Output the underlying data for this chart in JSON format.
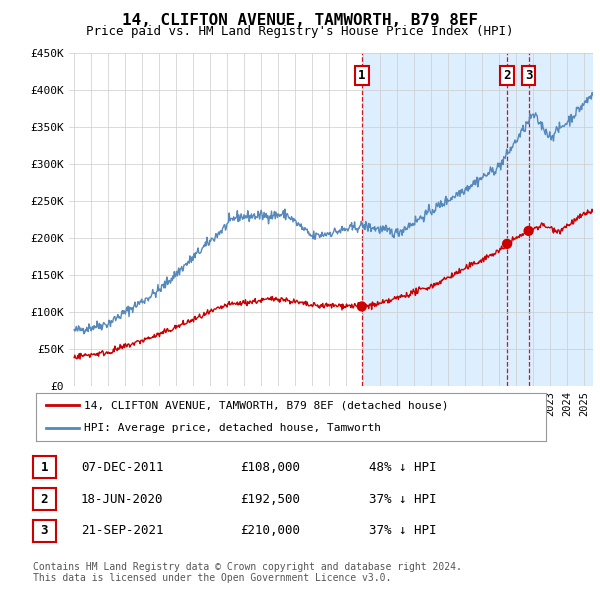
{
  "title": "14, CLIFTON AVENUE, TAMWORTH, B79 8EF",
  "subtitle": "Price paid vs. HM Land Registry's House Price Index (HPI)",
  "sale_prices": [
    108000,
    192500,
    210000
  ],
  "sale_labels": [
    "1",
    "2",
    "3"
  ],
  "hpi_color": "#5588bb",
  "price_color": "#cc0000",
  "vline_color": "#cc0000",
  "annotation_box_color": "#cc0000",
  "shade_color": "#ddeeff",
  "legend_entries": [
    "14, CLIFTON AVENUE, TAMWORTH, B79 8EF (detached house)",
    "HPI: Average price, detached house, Tamworth"
  ],
  "table_rows": [
    [
      "1",
      "07-DEC-2011",
      "£108,000",
      "48% ↓ HPI"
    ],
    [
      "2",
      "18-JUN-2020",
      "£192,500",
      "37% ↓ HPI"
    ],
    [
      "3",
      "21-SEP-2021",
      "£210,000",
      "37% ↓ HPI"
    ]
  ],
  "footnote": "Contains HM Land Registry data © Crown copyright and database right 2024.\nThis data is licensed under the Open Government Licence v3.0.",
  "ylim": [
    0,
    450000
  ],
  "yticks": [
    0,
    50000,
    100000,
    150000,
    200000,
    250000,
    300000,
    350000,
    400000,
    450000
  ],
  "ytick_labels": [
    "£0",
    "£50K",
    "£100K",
    "£150K",
    "£200K",
    "£250K",
    "£300K",
    "£350K",
    "£400K",
    "£450K"
  ],
  "background_color": "#ffffff"
}
